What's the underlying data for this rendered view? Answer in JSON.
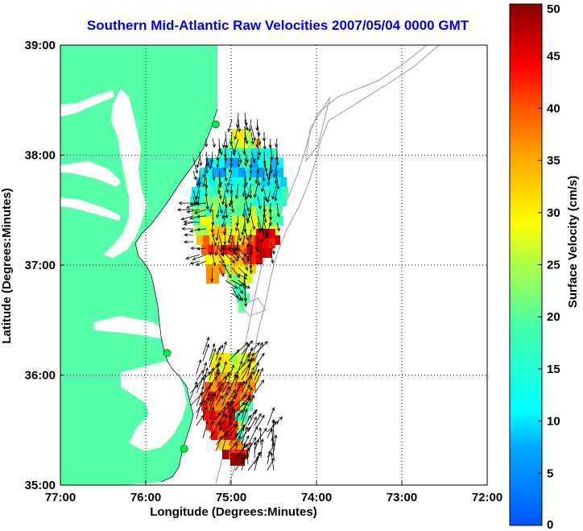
{
  "map": {
    "title": "Southern Mid-Atlantic Raw Velocities 2007/05/04 0000 GMT",
    "xlabel": "Longitude (Degrees:Minutes)",
    "ylabel": "Latitude (Degrees:Minutes)",
    "x_ticks": [
      "77:00",
      "76:00",
      "75:00",
      "74:00",
      "73:00",
      "72:00"
    ],
    "y_ticks": [
      "39:00",
      "38:00",
      "37:00",
      "36:00",
      "35:00"
    ],
    "lon_range": [
      -77,
      -72
    ],
    "lat_range": [
      35,
      39
    ],
    "land_color": "#55ffaa",
    "bathymetry_color": "#999999",
    "grid": true,
    "stations": [
      {
        "lon": -75.18,
        "lat": 38.28
      },
      {
        "lon": -75.75,
        "lat": 36.2
      },
      {
        "lon": -75.55,
        "lat": 35.33
      }
    ],
    "velocity_regions": [
      {
        "name": "north",
        "range_cm_s": [
          5,
          45
        ]
      },
      {
        "name": "south",
        "range_cm_s": [
          15,
          50
        ]
      }
    ]
  },
  "colorbar": {
    "label": "Surface Velocity (cm/s)",
    "min": 0,
    "max": 50,
    "ticks": [
      "50",
      "45",
      "40",
      "35",
      "30",
      "25",
      "20",
      "15",
      "10",
      "5",
      "0"
    ]
  }
}
